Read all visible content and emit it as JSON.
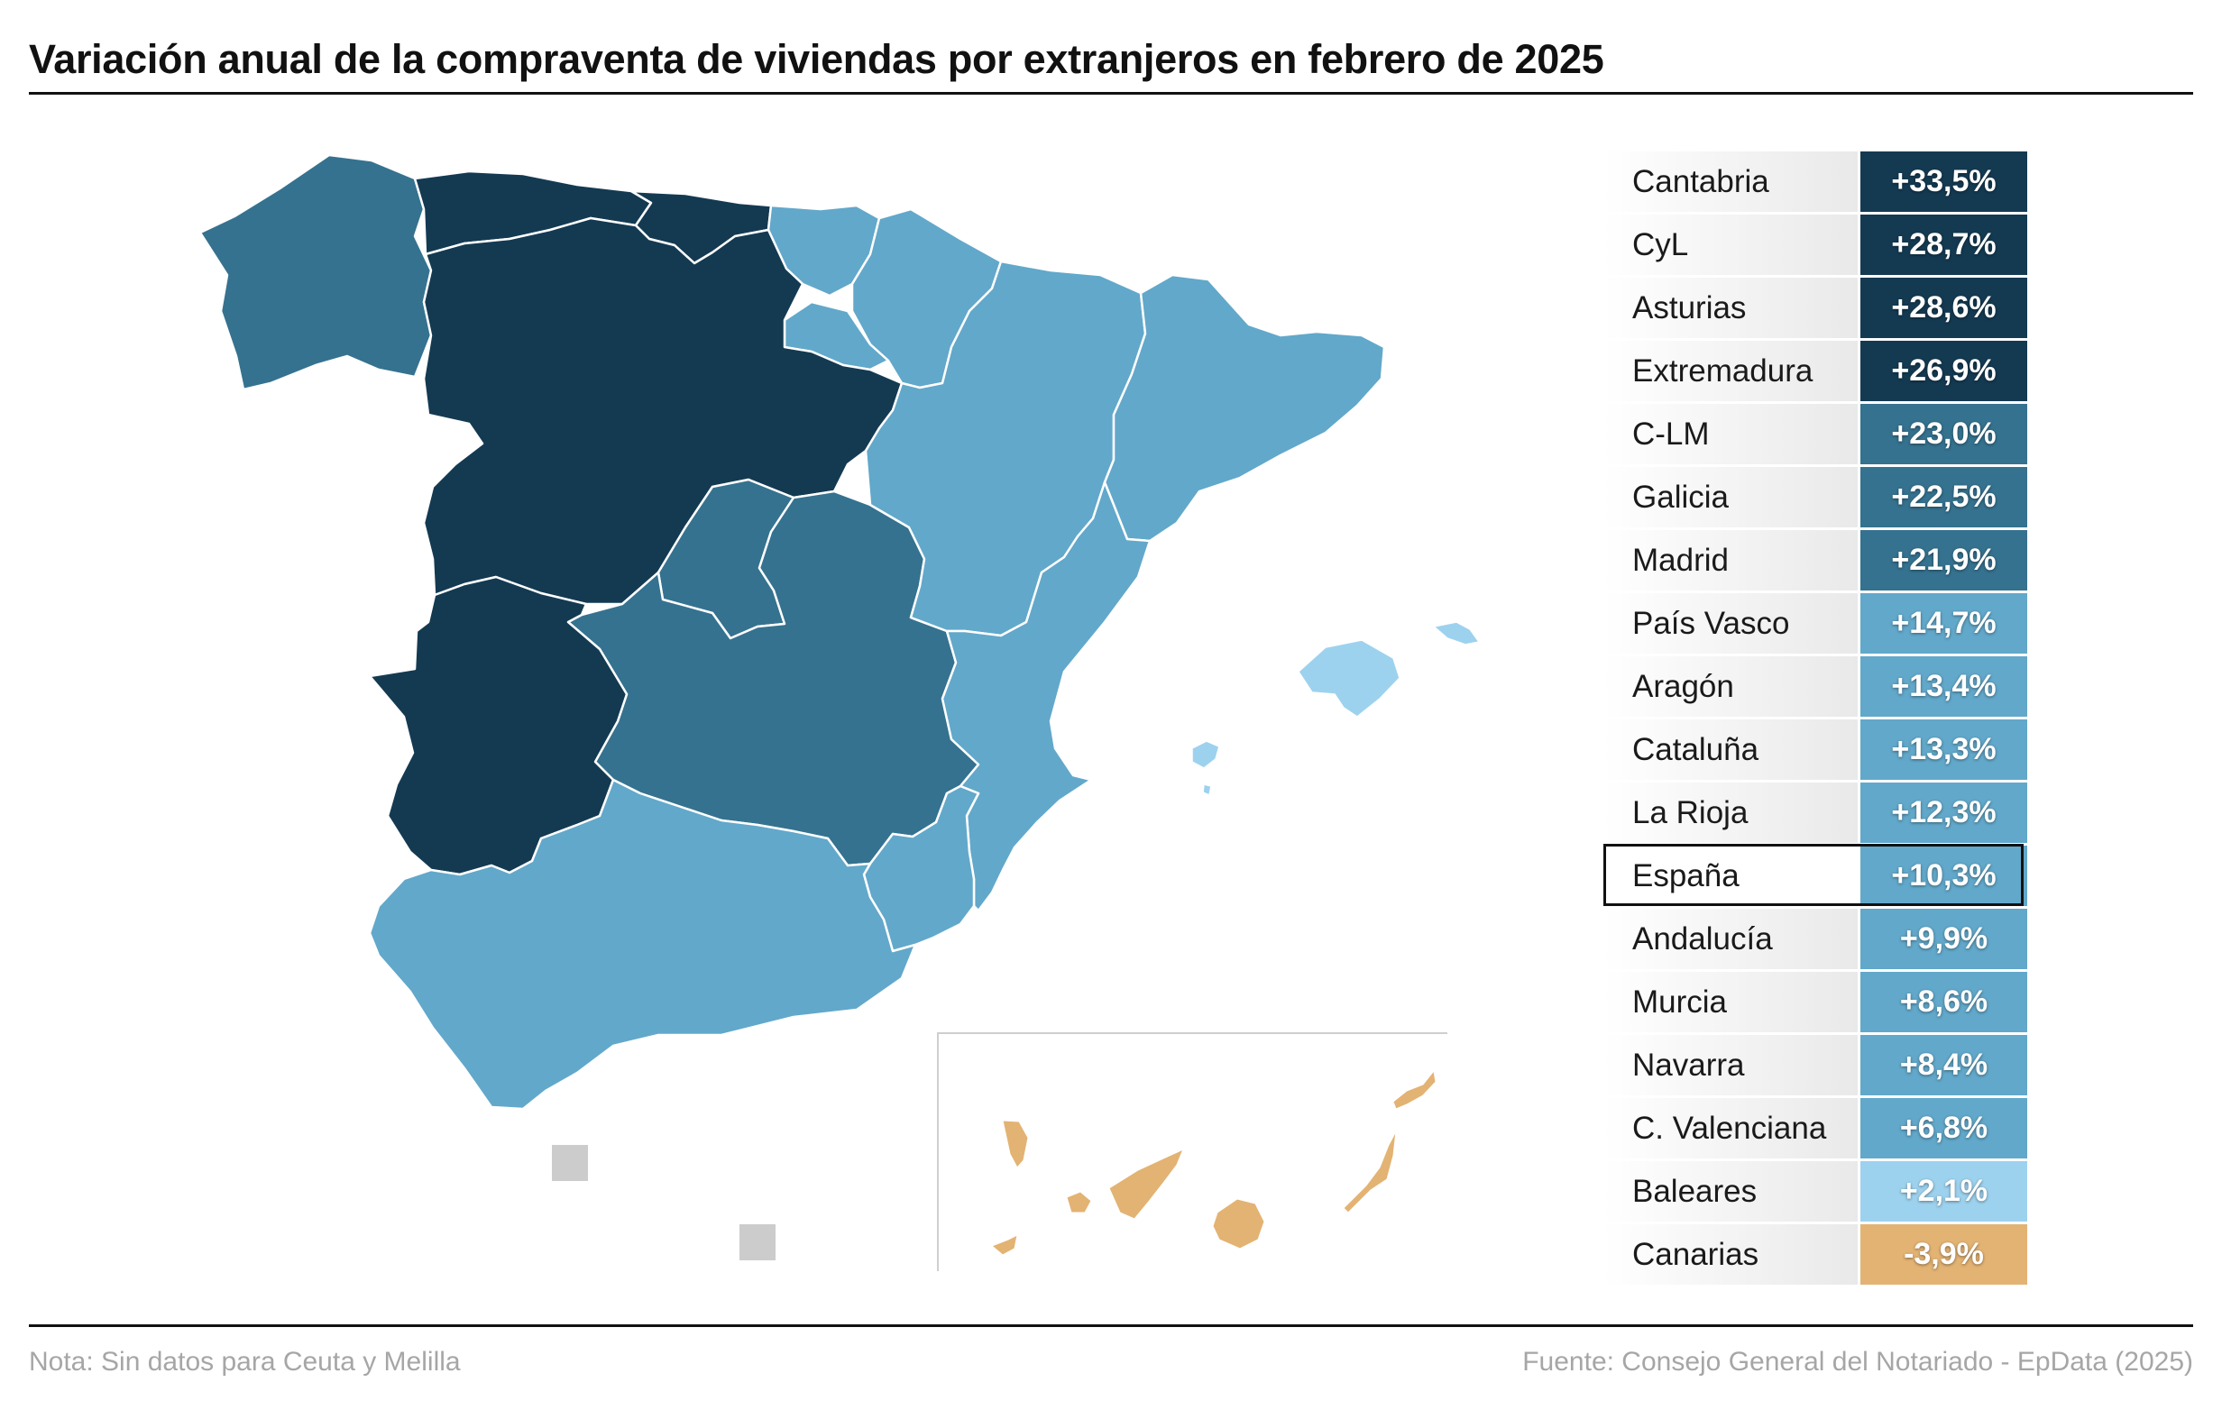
{
  "title": "Variación anual de la compraventa de viviendas por extranjeros en febrero de 2025",
  "note": "Nota: Sin datos para Ceuta y Melilla",
  "source": "Fuente: Consejo General del Notariado - EpData (2025)",
  "colors": {
    "darkest": "#143a52",
    "dark": "#35728f",
    "medium": "#62a8ca",
    "light": "#9dd2ee",
    "negative": "#e3b373",
    "no_data": "#cccccc"
  },
  "rows": [
    {
      "name": "Cantabria",
      "value": "+33,5%",
      "color": "#143a52"
    },
    {
      "name": "CyL",
      "value": "+28,7%",
      "color": "#143a52"
    },
    {
      "name": "Asturias",
      "value": "+28,6%",
      "color": "#143a52"
    },
    {
      "name": "Extremadura",
      "value": "+26,9%",
      "color": "#143a52"
    },
    {
      "name": "C-LM",
      "value": "+23,0%",
      "color": "#35728f"
    },
    {
      "name": "Galicia",
      "value": "+22,5%",
      "color": "#35728f"
    },
    {
      "name": "Madrid",
      "value": "+21,9%",
      "color": "#35728f"
    },
    {
      "name": "País Vasco",
      "value": "+14,7%",
      "color": "#62a8ca"
    },
    {
      "name": "Aragón",
      "value": "+13,4%",
      "color": "#62a8ca"
    },
    {
      "name": "Cataluña",
      "value": "+13,3%",
      "color": "#62a8ca"
    },
    {
      "name": "La Rioja",
      "value": "+12,3%",
      "color": "#62a8ca"
    },
    {
      "name": "España",
      "value": "+10,3%",
      "color": "#62a8ca",
      "highlight": true
    },
    {
      "name": "Andalucía",
      "value": "+9,9%",
      "color": "#62a8ca"
    },
    {
      "name": "Murcia",
      "value": "+8,6%",
      "color": "#62a8ca"
    },
    {
      "name": "Navarra",
      "value": "+8,4%",
      "color": "#62a8ca"
    },
    {
      "name": "C. Valenciana",
      "value": "+6,8%",
      "color": "#62a8ca"
    },
    {
      "name": "Baleares",
      "value": "+2,1%",
      "color": "#9dd2ee"
    },
    {
      "name": "Canarias",
      "value": "-3,9%",
      "color": "#e3b373"
    }
  ]
}
